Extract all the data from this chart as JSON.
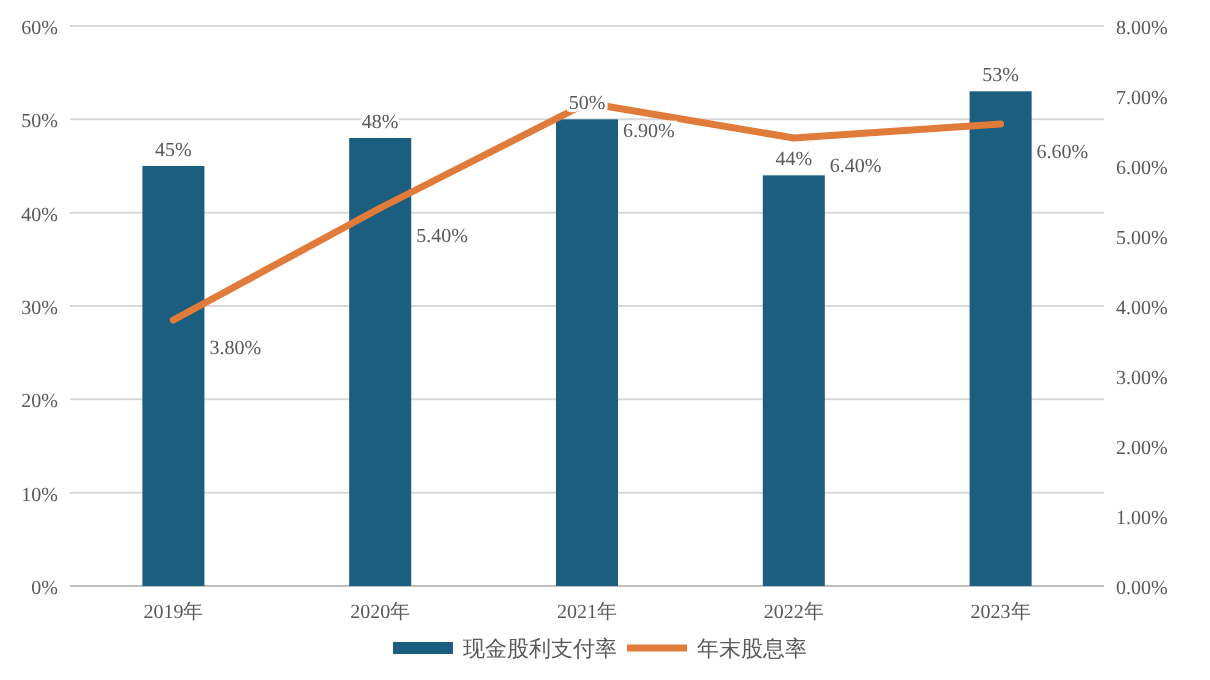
{
  "chart_data": {
    "type": "bar",
    "categories": [
      "2019年",
      "2020年",
      "2021年",
      "2022年",
      "2023年"
    ],
    "series": [
      {
        "name": "现金股利支付率",
        "color": "#1b5e7f",
        "values": [
          45,
          48,
          50,
          44,
          53
        ],
        "value_labels": [
          "45%",
          "48%",
          "50%",
          "44%",
          "53%"
        ]
      },
      {
        "name": "年末股息率",
        "type": "line",
        "axis": "y2",
        "color": "#e07b39",
        "values": [
          3.8,
          5.4,
          6.9,
          6.4,
          6.6
        ],
        "value_labels": [
          "3.80%",
          "5.40%",
          "6.90%",
          "6.40%",
          "6.60%"
        ]
      }
    ],
    "ylim": [
      0,
      60
    ],
    "yticks": [
      {
        "value": 0,
        "label": "0%"
      },
      {
        "value": 10,
        "label": "10%"
      },
      {
        "value": 20,
        "label": "20%"
      },
      {
        "value": 30,
        "label": "30%"
      },
      {
        "value": 40,
        "label": "40%"
      },
      {
        "value": 50,
        "label": "50%"
      },
      {
        "value": 60,
        "label": "60%"
      }
    ],
    "y2lim": [
      0,
      8
    ],
    "y2ticks": [
      {
        "value": 0,
        "label": "0.00%"
      },
      {
        "value": 1,
        "label": "1.00%"
      },
      {
        "value": 2,
        "label": "2.00%"
      },
      {
        "value": 3,
        "label": "3.00%"
      },
      {
        "value": 4,
        "label": "4.00%"
      },
      {
        "value": 5,
        "label": "5.00%"
      },
      {
        "value": 6,
        "label": "6.00%"
      },
      {
        "value": 7,
        "label": "7.00%"
      },
      {
        "value": 8,
        "label": "8.00%"
      }
    ],
    "grid": "y",
    "legend": "bottom",
    "line_style": "solid",
    "marker": "none"
  }
}
